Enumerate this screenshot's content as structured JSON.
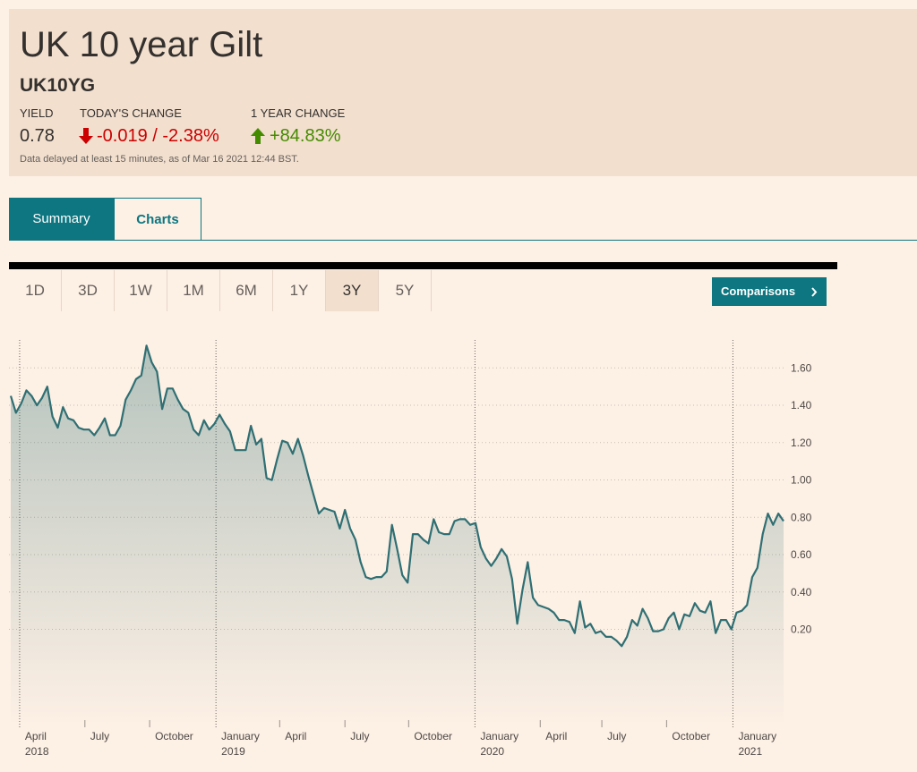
{
  "header": {
    "title": "UK 10 year Gilt",
    "symbol": "UK10YG",
    "stats": [
      {
        "label": "YIELD",
        "value": "0.78"
      },
      {
        "label": "TODAY'S CHANGE",
        "value": "-0.019 / -2.38%"
      },
      {
        "label": "1 YEAR CHANGE",
        "value": "+84.83%"
      }
    ],
    "note": "Data delayed at least 15 minutes, as of Mar 16 2021 12:44 BST."
  },
  "tabs": [
    "Summary",
    "Charts"
  ],
  "ranges": [
    "1D",
    "3D",
    "1W",
    "1M",
    "6M",
    "1Y",
    "3Y",
    "5Y"
  ],
  "selected_range": "3Y",
  "button": "Comparisons",
  "chart_data": {
    "type": "area",
    "color": "#2f6f73",
    "grid": true,
    "values": [
      1.45,
      1.36,
      1.41,
      1.48,
      1.45,
      1.4,
      1.44,
      1.5,
      1.34,
      1.28,
      1.39,
      1.33,
      1.32,
      1.28,
      1.27,
      1.27,
      1.24,
      1.28,
      1.33,
      1.24,
      1.24,
      1.29,
      1.43,
      1.48,
      1.54,
      1.56,
      1.72,
      1.63,
      1.58,
      1.38,
      1.49,
      1.49,
      1.43,
      1.38,
      1.36,
      1.27,
      1.24,
      1.32,
      1.27,
      1.3,
      1.35,
      1.3,
      1.26,
      1.16,
      1.16,
      1.16,
      1.29,
      1.19,
      1.22,
      1.01,
      1.0,
      1.11,
      1.21,
      1.2,
      1.14,
      1.22,
      1.13,
      1.02,
      0.92,
      0.82,
      0.85,
      0.84,
      0.83,
      0.74,
      0.84,
      0.74,
      0.68,
      0.56,
      0.48,
      0.47,
      0.48,
      0.48,
      0.51,
      0.76,
      0.63,
      0.49,
      0.45,
      0.71,
      0.71,
      0.68,
      0.66,
      0.79,
      0.72,
      0.71,
      0.71,
      0.78,
      0.79,
      0.79,
      0.76,
      0.77,
      0.64,
      0.58,
      0.54,
      0.58,
      0.63,
      0.59,
      0.47,
      0.23,
      0.41,
      0.56,
      0.37,
      0.33,
      0.32,
      0.31,
      0.29,
      0.25,
      0.25,
      0.24,
      0.18,
      0.35,
      0.21,
      0.23,
      0.18,
      0.19,
      0.16,
      0.16,
      0.14,
      0.11,
      0.16,
      0.25,
      0.22,
      0.31,
      0.26,
      0.19,
      0.19,
      0.2,
      0.26,
      0.29,
      0.2,
      0.28,
      0.27,
      0.34,
      0.3,
      0.29,
      0.35,
      0.18,
      0.25,
      0.25,
      0.2,
      0.29,
      0.3,
      0.33,
      0.48,
      0.53,
      0.71,
      0.82,
      0.76,
      0.82,
      0.78
    ],
    "xticks": [
      {
        "value": 1.7,
        "label": "April 2018"
      },
      {
        "value": 14.2,
        "label": "July"
      },
      {
        "value": 26.6,
        "label": "October"
      },
      {
        "value": 39.3,
        "label": "January 2019"
      },
      {
        "value": 51.5,
        "label": "April"
      },
      {
        "value": 64,
        "label": "July"
      },
      {
        "value": 76.2,
        "label": "October"
      },
      {
        "value": 88.9,
        "label": "January 2020"
      },
      {
        "value": 101.4,
        "label": "April"
      },
      {
        "value": 113.2,
        "label": "July"
      },
      {
        "value": 125.6,
        "label": "October"
      },
      {
        "value": 138.3,
        "label": "January 2021"
      }
    ],
    "ylim": [
      -0.31,
      1.75
    ],
    "yticks": [
      {
        "value": 0.2,
        "label": "0.20"
      },
      {
        "value": 0.4,
        "label": "0.40"
      },
      {
        "value": 0.6,
        "label": "0.60"
      },
      {
        "value": 0.8,
        "label": "0.80"
      },
      {
        "value": 1.0,
        "label": "1.00"
      },
      {
        "value": 1.2,
        "label": "1.20"
      },
      {
        "value": 1.4,
        "label": "1.40"
      },
      {
        "value": 1.6,
        "label": "1.60"
      }
    ]
  }
}
